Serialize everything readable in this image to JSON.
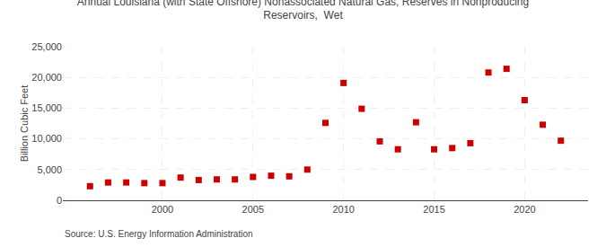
{
  "chart_data": {
    "type": "scatter",
    "title": "Annual Louisiana (with State Offshore) Nonassociated Natural Gas, Reserves in Nonproducing\nReservoirs,  Wet",
    "ylabel": "Billion Cubic Feet",
    "annotations": [
      "Source: U.S. Energy Information Administration"
    ],
    "x": [
      1996,
      1997,
      1998,
      1999,
      2000,
      2001,
      2002,
      2003,
      2004,
      2005,
      2006,
      2007,
      2008,
      2009,
      2010,
      2011,
      2012,
      2013,
      2014,
      2015,
      2016,
      2017,
      2018,
      2019,
      2020,
      2021,
      2022
    ],
    "values": [
      2300,
      2900,
      2900,
      2800,
      2800,
      3700,
      3300,
      3400,
      3400,
      3800,
      4000,
      3900,
      5000,
      12600,
      19100,
      14900,
      9600,
      8300,
      12700,
      8300,
      8500,
      9300,
      20800,
      21400,
      16300,
      12300,
      9700
    ],
    "color": "#CC0000",
    "marker": "square",
    "xlim": [
      1994.5,
      2023.5
    ],
    "xticks": [
      2000,
      2005,
      2010,
      2015,
      2020
    ],
    "ylim": [
      0,
      25000
    ],
    "yticks": [
      0,
      {
        "value": 5000,
        "label": "5,000"
      },
      {
        "value": 10000,
        "label": "10,000"
      },
      {
        "value": 15000,
        "label": "15,000"
      },
      {
        "value": 20000,
        "label": "20,000"
      },
      {
        "value": 25000,
        "label": "25,000"
      }
    ],
    "grid": true
  }
}
